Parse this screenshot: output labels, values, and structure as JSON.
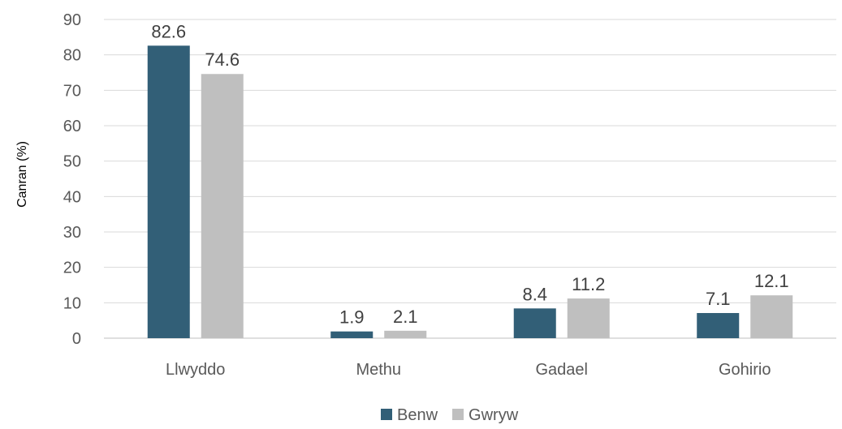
{
  "chart_data": {
    "type": "bar",
    "title": "",
    "xlabel": "",
    "ylabel": "Canran (%)",
    "ylim": [
      0,
      90
    ],
    "ytick_step": 10,
    "grid": true,
    "legend_position": "bottom",
    "categories": [
      "Llwyddo",
      "Methu",
      "Gadael",
      "Gohirio"
    ],
    "series": [
      {
        "name": "Benw",
        "color": "#325f77",
        "values": [
          82.6,
          1.9,
          8.4,
          7.1
        ]
      },
      {
        "name": "Gwryw",
        "color": "#bfbfbf",
        "values": [
          74.6,
          2.1,
          11.2,
          12.1
        ]
      }
    ]
  }
}
